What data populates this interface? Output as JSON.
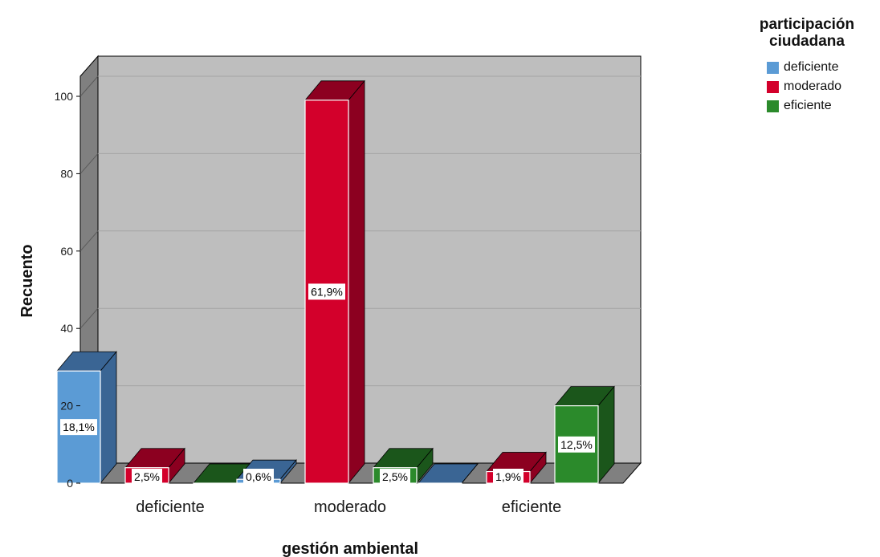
{
  "chart_data": {
    "type": "bar",
    "style": "3d-clustered",
    "xlabel": "gestión ambiental",
    "ylabel": "Recuento",
    "ylim": [
      0,
      100
    ],
    "yticks": [
      0,
      20,
      40,
      60,
      80,
      100
    ],
    "categories": [
      "deficiente",
      "moderado",
      "eficiente"
    ],
    "legend_title": "participación ciudadana",
    "legend_position": "top-right",
    "grid": true,
    "series": [
      {
        "name": "deficiente",
        "color": "#5b9bd5",
        "side_color": "#3a6594",
        "values": [
          29,
          1,
          0
        ],
        "labels": [
          "18,1%",
          "0,6%",
          ""
        ]
      },
      {
        "name": "moderado",
        "color": "#d3002b",
        "side_color": "#8c0020",
        "values": [
          4,
          99,
          3
        ],
        "labels": [
          "2,5%",
          "61,9%",
          "1,9%"
        ]
      },
      {
        "name": "eficiente",
        "color": "#2b8a2b",
        "side_color": "#1b561b",
        "values": [
          0,
          4,
          20
        ],
        "labels": [
          "",
          "2,5%",
          "12,5%"
        ]
      }
    ]
  }
}
